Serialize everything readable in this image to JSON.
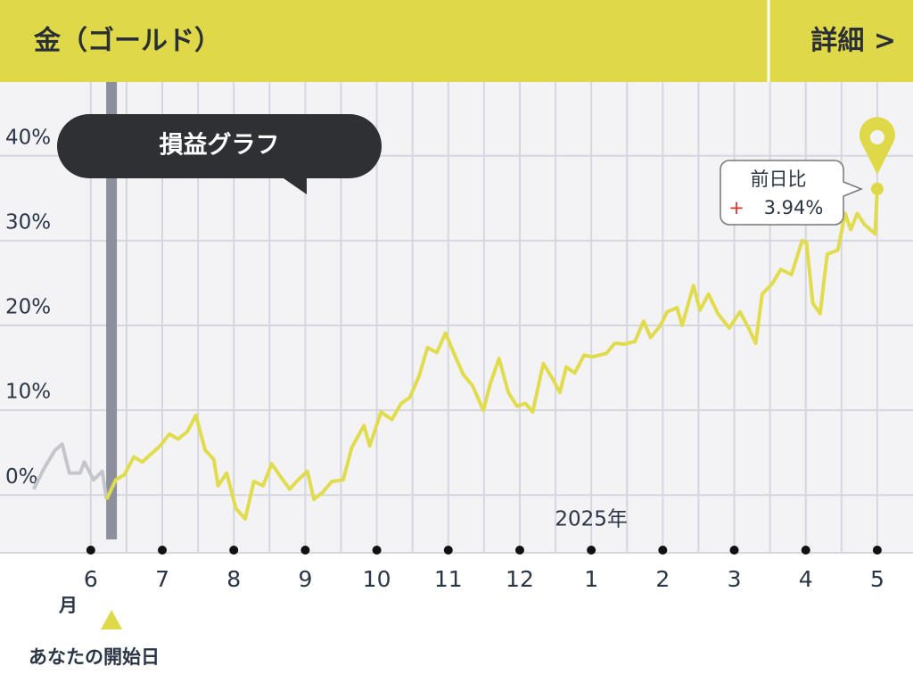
{
  "header": {
    "title": "金（ゴールド）",
    "detail": "詳細 >"
  },
  "chart_data": {
    "type": "line",
    "tooltip": "損益グラフ",
    "callout": {
      "label": "前日比",
      "sign": "+",
      "value": "3.94%"
    },
    "year_label": "2025年",
    "month_unit": "月",
    "start_label": "あなたの開始日",
    "start_x": 0.29,
    "xlim": [
      -1.27,
      11.5
    ],
    "ylim": [
      -6.8,
      48.7
    ],
    "xticks": [
      {
        "value": 0,
        "label": "6"
      },
      {
        "value": 1,
        "label": "7"
      },
      {
        "value": 2,
        "label": "8"
      },
      {
        "value": 3,
        "label": "9"
      },
      {
        "value": 4,
        "label": "10"
      },
      {
        "value": 5,
        "label": "11"
      },
      {
        "value": 6,
        "label": "12"
      },
      {
        "value": 7,
        "label": "1"
      },
      {
        "value": 8,
        "label": "2"
      },
      {
        "value": 9,
        "label": "3"
      },
      {
        "value": 10,
        "label": "4"
      },
      {
        "value": 11,
        "label": "5"
      }
    ],
    "yticks": [
      {
        "value": 0,
        "label": "0%"
      },
      {
        "value": 10,
        "label": "10%"
      },
      {
        "value": 20,
        "label": "20%"
      },
      {
        "value": 30,
        "label": "30%"
      },
      {
        "value": 40,
        "label": "40%"
      }
    ],
    "grid": true,
    "series": [
      {
        "color": "#c4c6c9",
        "x": [
          -0.8,
          -0.65,
          -0.5,
          -0.4,
          -0.3,
          -0.15,
          -0.09,
          0.04,
          0.16,
          0.22
        ],
        "values": [
          0.7,
          3.2,
          5.3,
          6.0,
          2.6,
          2.6,
          3.9,
          1.8,
          2.8,
          -0.5
        ]
      },
      {
        "color": "#e0dc4e",
        "x": [
          0.22,
          0.35,
          0.47,
          0.6,
          0.72,
          0.85,
          0.97,
          1.1,
          1.22,
          1.35,
          1.47,
          1.6,
          1.72,
          1.78,
          1.9,
          2.03,
          2.16,
          2.28,
          2.41,
          2.53,
          2.66,
          2.78,
          2.9,
          3.03,
          3.12,
          3.24,
          3.37,
          3.53,
          3.65,
          3.82,
          3.9,
          4.06,
          4.21,
          4.34,
          4.46,
          4.59,
          4.71,
          4.84,
          4.96,
          5.09,
          5.21,
          5.34,
          5.49,
          5.59,
          5.71,
          5.84,
          5.96,
          6.08,
          6.18,
          6.33,
          6.46,
          6.56,
          6.65,
          6.77,
          6.9,
          7.02,
          7.21,
          7.33,
          7.46,
          7.61,
          7.73,
          7.83,
          7.96,
          8.06,
          8.2,
          8.27,
          8.43,
          8.52,
          8.64,
          8.77,
          8.93,
          9.08,
          9.2,
          9.3,
          9.39,
          9.53,
          9.65,
          9.8,
          9.95,
          10.01,
          10.1,
          10.2,
          10.3,
          10.45,
          10.55,
          10.63,
          10.72,
          10.82,
          10.97,
          11.0
        ],
        "values": [
          -0.5,
          1.8,
          2.4,
          4.5,
          3.9,
          4.9,
          5.8,
          7.2,
          6.6,
          7.5,
          9.4,
          5.3,
          4.2,
          1.1,
          2.6,
          -1.6,
          -2.8,
          1.6,
          1.1,
          3.7,
          2.1,
          0.7,
          1.8,
          2.8,
          -0.5,
          0.3,
          1.6,
          1.8,
          5.6,
          8.2,
          5.8,
          9.8,
          8.9,
          10.8,
          11.5,
          14.0,
          17.4,
          16.8,
          19.1,
          16.5,
          14.2,
          12.9,
          10.0,
          13.2,
          16.1,
          12.1,
          10.5,
          10.8,
          9.8,
          15.5,
          13.7,
          12.1,
          15.1,
          14.4,
          16.5,
          16.3,
          16.7,
          17.9,
          17.8,
          18.1,
          20.5,
          18.6,
          19.9,
          21.6,
          22.1,
          20.0,
          24.7,
          21.8,
          23.7,
          21.4,
          19.7,
          21.6,
          19.7,
          17.9,
          23.7,
          24.9,
          26.6,
          26.0,
          30.0,
          29.8,
          22.6,
          21.4,
          28.4,
          28.9,
          33.2,
          31.3,
          33.2,
          31.9,
          30.8,
          36.1
        ]
      }
    ]
  }
}
